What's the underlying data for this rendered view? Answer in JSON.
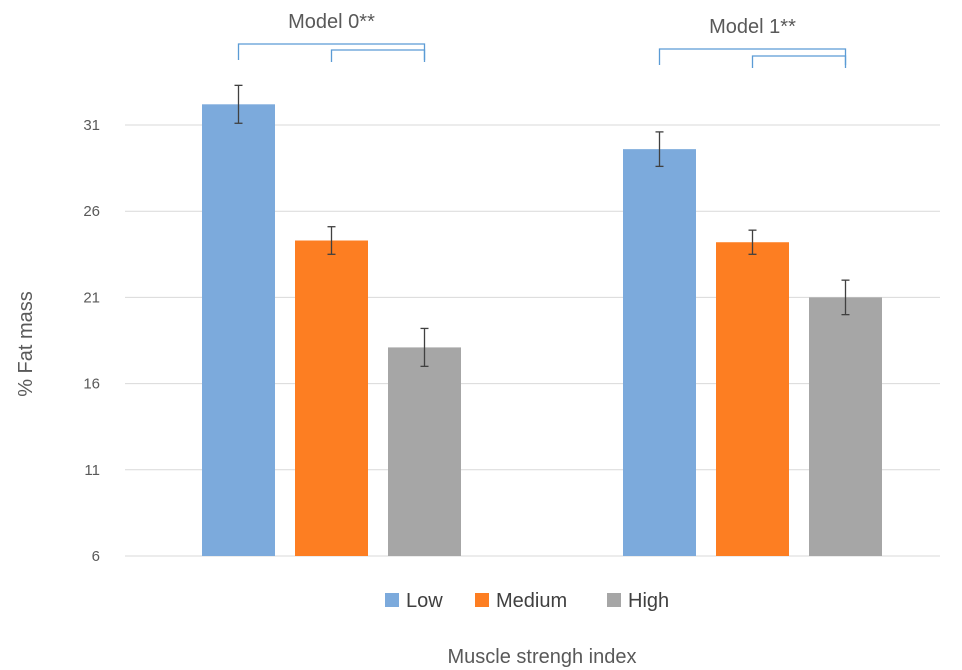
{
  "chart_data": {
    "type": "bar",
    "groups": [
      "Model 0**",
      "Model 1**"
    ],
    "series": [
      {
        "name": "Low",
        "color": "#7caadc",
        "values": [
          32.2,
          29.6
        ],
        "error": [
          1.1,
          1.0
        ]
      },
      {
        "name": "Medium",
        "color": "#fd7e22",
        "values": [
          24.3,
          24.2
        ],
        "error": [
          0.8,
          0.7
        ]
      },
      {
        "name": "High",
        "color": "#a6a6a6",
        "values": [
          18.1,
          21.0
        ],
        "error": [
          1.1,
          1.0
        ]
      }
    ],
    "ylabel": "% Fat mass",
    "xlabel": "Muscle strengh index",
    "ylim": [
      6,
      33
    ],
    "yticks": [
      6,
      11,
      16,
      21,
      26,
      31
    ],
    "grid": true,
    "legend_position": "bottom",
    "significance_brackets": [
      {
        "group": 0,
        "from": "Low",
        "to": "High"
      },
      {
        "group": 0,
        "from": "Medium",
        "to": "High"
      },
      {
        "group": 1,
        "from": "Low",
        "to": "High"
      },
      {
        "group": 1,
        "from": "Medium",
        "to": "High"
      }
    ],
    "bracket_color": "#5b9bd5",
    "grid_color": "#d9d9d9",
    "errorbar_color": "#404040"
  }
}
